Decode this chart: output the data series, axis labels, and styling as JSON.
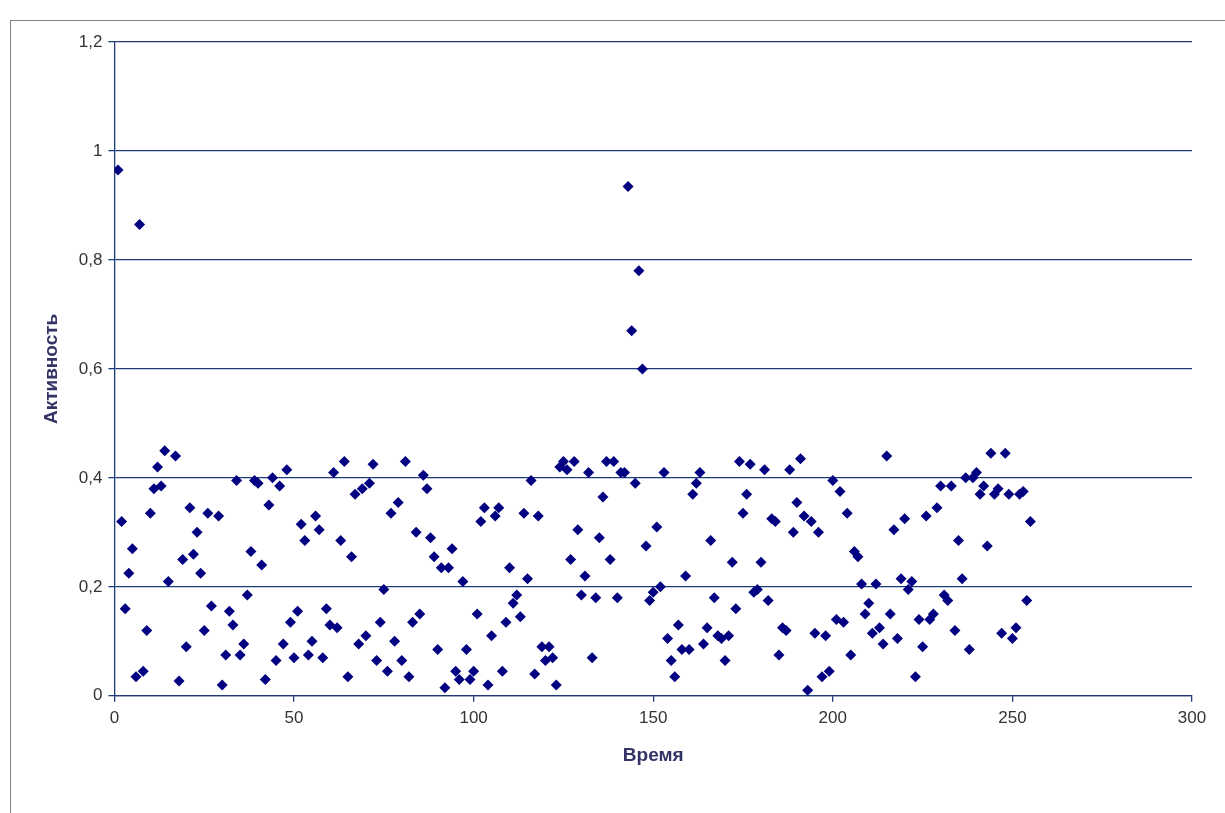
{
  "chart_data": {
    "type": "scatter",
    "xlabel": "Время",
    "ylabel": "Активность",
    "marker": "diamond",
    "grid": "y",
    "legend": false,
    "xlim": [
      0,
      300
    ],
    "xticks": [
      0,
      50,
      100,
      150,
      200,
      250,
      300
    ],
    "ylim": [
      0,
      1.2
    ],
    "yticks": [
      0,
      {
        "value": 0.2,
        "label": "0,2"
      },
      {
        "value": 0.4,
        "label": "0,4"
      },
      {
        "value": 0.6,
        "label": "0,6"
      },
      {
        "value": 0.8,
        "label": "0,8"
      },
      1,
      {
        "value": 1.2,
        "label": "1,2"
      }
    ],
    "series": [
      {
        "color": "#000080",
        "x": [
          1,
          2,
          3,
          4,
          5,
          6,
          7,
          8,
          9,
          10,
          11,
          12,
          13,
          14,
          15,
          17,
          18,
          19,
          20,
          21,
          22,
          23,
          24,
          25,
          26,
          27,
          29,
          30,
          31,
          32,
          33,
          34,
          35,
          36,
          37,
          38,
          39,
          40,
          41,
          42,
          43,
          44,
          45,
          46,
          47,
          48,
          49,
          50,
          51,
          52,
          53,
          54,
          55,
          56,
          57,
          58,
          59,
          60,
          61,
          62,
          63,
          64,
          65,
          66,
          67,
          68,
          69,
          70,
          71,
          72,
          73,
          74,
          75,
          76,
          77,
          78,
          79,
          80,
          81,
          82,
          83,
          84,
          85,
          86,
          87,
          88,
          89,
          90,
          91,
          92,
          93,
          94,
          95,
          96,
          97,
          98,
          99,
          100,
          101,
          102,
          103,
          104,
          105,
          106,
          107,
          108,
          109,
          110,
          111,
          112,
          113,
          114,
          115,
          116,
          117,
          118,
          119,
          120,
          121,
          122,
          123,
          124,
          125,
          126,
          127,
          128,
          129,
          130,
          131,
          132,
          133,
          134,
          135,
          136,
          137,
          138,
          139,
          140,
          141,
          142,
          143,
          144,
          145,
          146,
          147,
          148,
          149,
          150,
          151,
          152,
          153,
          154,
          155,
          156,
          157,
          158,
          159,
          160,
          161,
          162,
          163,
          164,
          165,
          166,
          167,
          168,
          169,
          170,
          171,
          172,
          173,
          174,
          175,
          176,
          177,
          178,
          179,
          180,
          181,
          182,
          183,
          184,
          185,
          186,
          187,
          188,
          189,
          190,
          191,
          192,
          193,
          194,
          195,
          196,
          197,
          198,
          199,
          200,
          201,
          202,
          203,
          204,
          205,
          206,
          207,
          208,
          209,
          210,
          211,
          212,
          213,
          214,
          215,
          216,
          217,
          218,
          219,
          220,
          221,
          222,
          223,
          224,
          225,
          226,
          227,
          228,
          229,
          230,
          231,
          232,
          233,
          234,
          235,
          236,
          237,
          238,
          239,
          240,
          241,
          242,
          243,
          244,
          245,
          246,
          247,
          248,
          249,
          250,
          251,
          252,
          253,
          254,
          255
        ],
        "values": [
          0.965,
          0.32,
          0.16,
          0.225,
          0.27,
          0.035,
          0.865,
          0.045,
          0.12,
          0.335,
          0.38,
          0.42,
          0.385,
          0.45,
          0.21,
          0.44,
          0.027,
          0.25,
          0.09,
          0.345,
          0.26,
          0.3,
          0.225,
          0.12,
          0.335,
          0.165,
          0.33,
          0.02,
          0.075,
          0.155,
          0.13,
          0.395,
          0.075,
          0.095,
          0.185,
          0.265,
          0.395,
          0.39,
          0.24,
          0.03,
          0.35,
          0.4,
          0.065,
          0.385,
          0.095,
          0.415,
          0.135,
          0.07,
          0.155,
          0.315,
          0.285,
          0.075,
          0.1,
          0.33,
          0.305,
          0.07,
          0.16,
          0.13,
          0.41,
          0.125,
          0.285,
          0.43,
          0.035,
          0.255,
          0.37,
          0.095,
          0.38,
          0.11,
          0.39,
          0.425,
          0.065,
          0.135,
          0.195,
          0.045,
          0.335,
          0.1,
          0.355,
          0.065,
          0.43,
          0.035,
          0.135,
          0.3,
          0.15,
          0.405,
          0.38,
          0.29,
          0.255,
          0.085,
          0.235,
          0.015,
          0.235,
          0.27,
          0.045,
          0.03,
          0.21,
          0.085,
          0.03,
          0.045,
          0.15,
          0.32,
          0.345,
          0.02,
          0.11,
          0.33,
          0.345,
          0.045,
          0.135,
          0.235,
          0.17,
          0.185,
          0.145,
          0.335,
          0.215,
          0.395,
          0.04,
          0.33,
          0.09,
          0.065,
          0.09,
          0.07,
          0.02,
          0.42,
          0.43,
          0.415,
          0.25,
          0.43,
          0.305,
          0.185,
          0.22,
          0.41,
          0.07,
          0.18,
          0.29,
          0.365,
          0.43,
          0.25,
          0.43,
          0.18,
          0.41,
          0.41,
          0.935,
          0.67,
          0.39,
          0.78,
          0.6,
          0.275,
          0.175,
          0.19,
          0.31,
          0.2,
          0.41,
          0.105,
          0.065,
          0.035,
          0.13,
          0.085,
          0.22,
          0.085,
          0.37,
          0.39,
          0.41,
          0.095,
          0.125,
          0.285,
          0.18,
          0.11,
          0.105,
          0.065,
          0.11,
          0.245,
          0.16,
          0.43,
          0.335,
          0.37,
          0.425,
          0.19,
          0.195,
          0.245,
          0.415,
          0.175,
          0.325,
          0.32,
          0.075,
          0.125,
          0.12,
          0.415,
          0.3,
          0.355,
          0.435,
          0.33,
          0.01,
          0.32,
          0.115,
          0.3,
          0.035,
          0.11,
          0.045,
          0.395,
          0.14,
          0.375,
          0.135,
          0.335,
          0.075,
          0.265,
          0.255,
          0.205,
          0.15,
          0.17,
          0.115,
          0.205,
          0.125,
          0.095,
          0.44,
          0.15,
          0.305,
          0.105,
          0.215,
          0.325,
          0.195,
          0.21,
          0.035,
          0.14,
          0.09,
          0.33,
          0.14,
          0.15,
          0.345,
          0.385,
          0.185,
          0.175,
          0.385,
          0.12,
          0.285,
          0.215,
          0.4,
          0.085,
          0.4,
          0.41,
          0.37,
          0.385,
          0.275,
          0.445,
          0.37,
          0.38,
          0.115,
          0.445,
          0.37,
          0.105,
          0.125,
          0.37,
          0.375,
          0.175,
          0.32
        ]
      }
    ]
  }
}
